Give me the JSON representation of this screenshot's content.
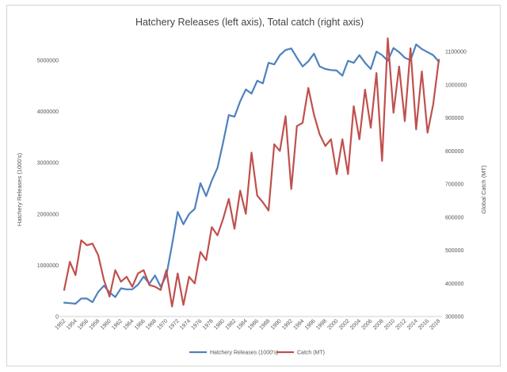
{
  "chart_data": {
    "type": "line",
    "title": "Hatchery Releases (left axis), Total catch (right axis)",
    "ylabel_left": "Hatchery Releases (1000's)",
    "ylabel_right": "Global Catch (MT)",
    "ylim_left": [
      0,
      5000000
    ],
    "yticks_left": [
      0,
      1000000,
      2000000,
      3000000,
      4000000,
      5000000
    ],
    "ylim_right": [
      300000,
      1100000
    ],
    "yticks_right": [
      300000,
      400000,
      500000,
      600000,
      700000,
      800000,
      900000,
      1000000,
      1100000
    ],
    "x": [
      1952,
      1953,
      1954,
      1955,
      1956,
      1957,
      1958,
      1959,
      1960,
      1961,
      1962,
      1963,
      1964,
      1965,
      1966,
      1967,
      1968,
      1969,
      1970,
      1971,
      1972,
      1973,
      1974,
      1975,
      1976,
      1977,
      1978,
      1979,
      1980,
      1981,
      1982,
      1983,
      1984,
      1985,
      1986,
      1987,
      1988,
      1989,
      1990,
      1991,
      1992,
      1993,
      1994,
      1995,
      1996,
      1997,
      1998,
      1999,
      2000,
      2001,
      2002,
      2003,
      2004,
      2005,
      2006,
      2007,
      2008,
      2009,
      2010,
      2011,
      2012,
      2013,
      2014,
      2015,
      2016,
      2017,
      2018
    ],
    "xticks": [
      "1952",
      "1954",
      "1956",
      "1958",
      "1960",
      "1962",
      "1964",
      "1966",
      "1968",
      "1970",
      "1972",
      "1974",
      "1976",
      "1978",
      "1980",
      "1982",
      "1984",
      "1986",
      "1988",
      "1990",
      "1992",
      "1994",
      "1996",
      "1998",
      "2000",
      "2002",
      "2004",
      "2006",
      "2008",
      "2010",
      "2012",
      "2014",
      "2016",
      "2018"
    ],
    "grid": false,
    "legend_position": "bottom",
    "series": [
      {
        "name": "Hatchery Releases (1000's)",
        "axis": "left",
        "color": "#4f81bd",
        "values": [
          270000,
          260000,
          250000,
          350000,
          350000,
          280000,
          480000,
          600000,
          470000,
          380000,
          550000,
          530000,
          530000,
          620000,
          780000,
          640000,
          800000,
          580000,
          800000,
          1400000,
          2040000,
          1800000,
          2000000,
          2100000,
          2600000,
          2350000,
          2650000,
          2900000,
          3400000,
          3930000,
          3900000,
          4200000,
          4430000,
          4350000,
          4600000,
          4550000,
          4950000,
          4920000,
          5100000,
          5200000,
          5230000,
          5050000,
          4880000,
          4980000,
          5130000,
          4880000,
          4830000,
          4810000,
          4800000,
          4700000,
          4990000,
          4950000,
          5100000,
          4950000,
          4830000,
          5170000,
          5100000,
          4990000,
          5240000,
          5160000,
          5050000,
          5000000,
          5310000,
          5220000,
          5160000,
          5100000,
          4970000
        ]
      },
      {
        "name": "Catch (MT)",
        "axis": "right",
        "color": "#c0504d",
        "values": [
          380000,
          465000,
          425000,
          530000,
          515000,
          520000,
          485000,
          410000,
          360000,
          440000,
          405000,
          420000,
          390000,
          430000,
          440000,
          395000,
          390000,
          380000,
          440000,
          330000,
          430000,
          335000,
          420000,
          400000,
          495000,
          470000,
          570000,
          545000,
          595000,
          655000,
          565000,
          680000,
          610000,
          795000,
          665000,
          645000,
          620000,
          820000,
          800000,
          905000,
          685000,
          875000,
          885000,
          990000,
          910000,
          850000,
          815000,
          835000,
          730000,
          835000,
          730000,
          935000,
          835000,
          985000,
          870000,
          1035000,
          770000,
          1140000,
          915000,
          1055000,
          890000,
          1110000,
          865000,
          1040000,
          855000,
          940000,
          1075000
        ]
      }
    ]
  }
}
